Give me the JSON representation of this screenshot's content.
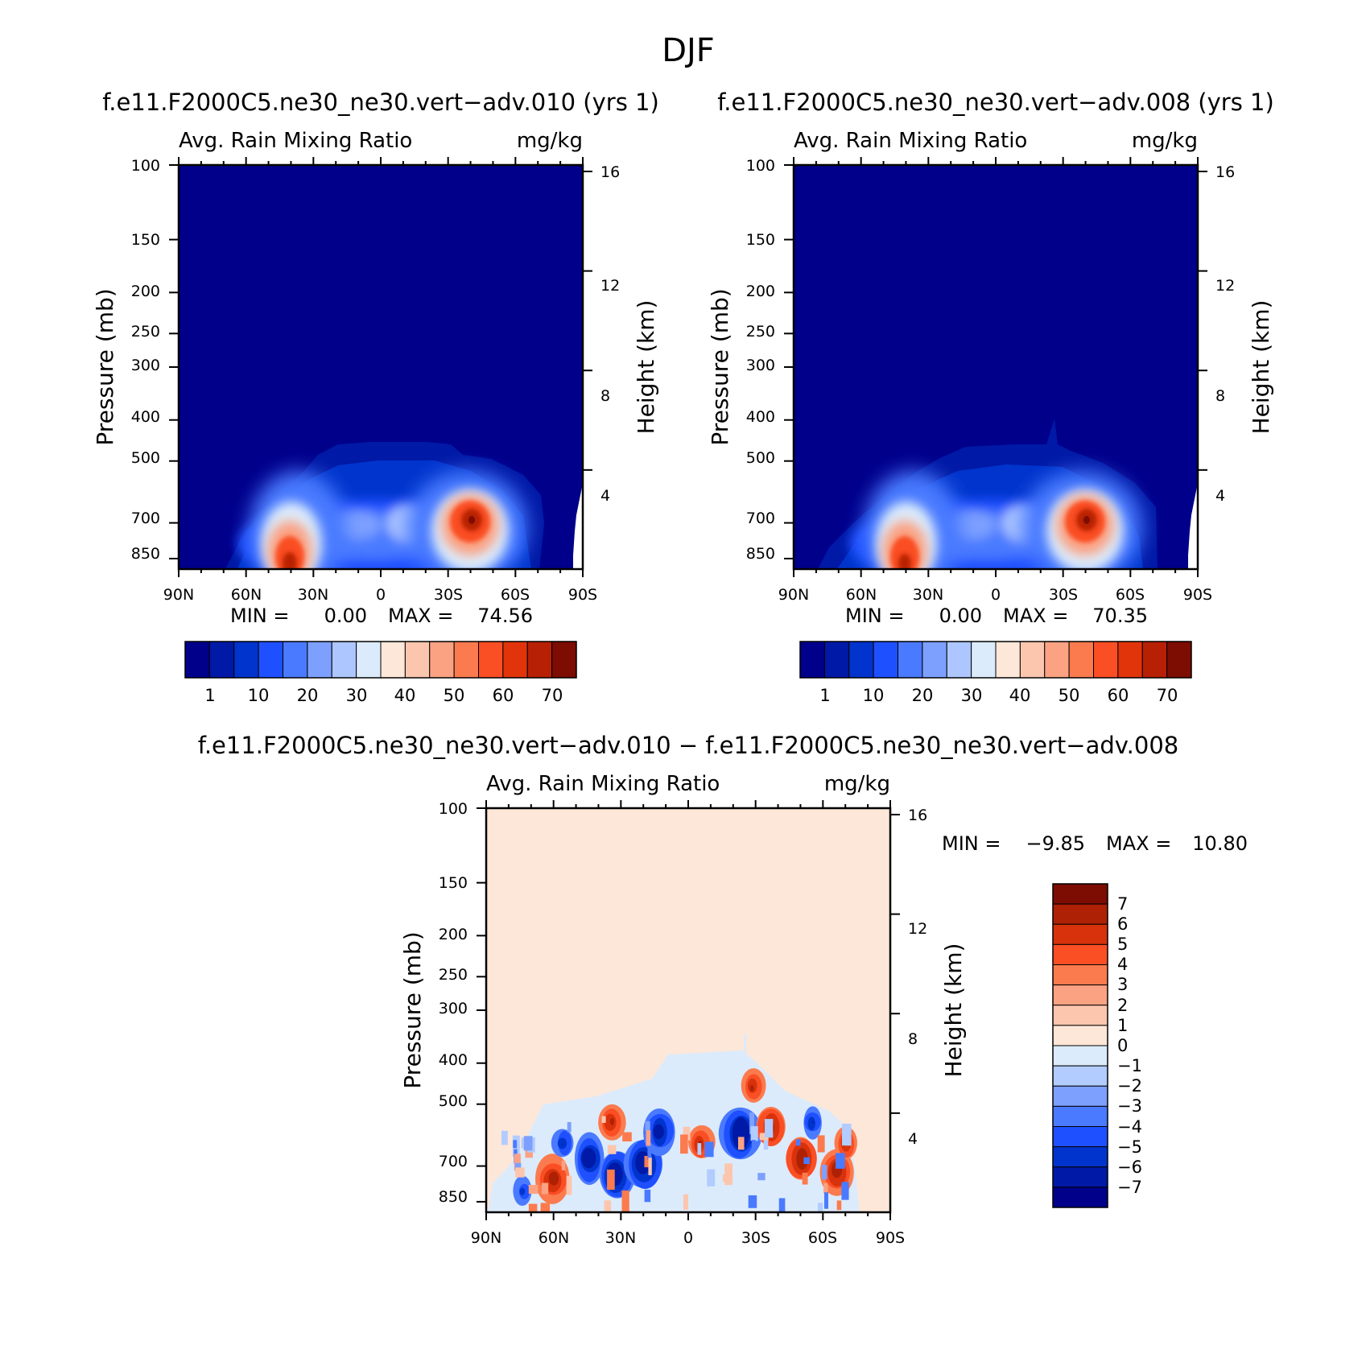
{
  "page_title": "DJF",
  "colors": {
    "field_scale": [
      "#00008b",
      "#0019a6",
      "#0034cc",
      "#1f50ff",
      "#4a7aff",
      "#7da0ff",
      "#adc6ff",
      "#dcebfb",
      "#fde7d8",
      "#fcc6ae",
      "#fba283",
      "#fb7b4e",
      "#fa4e24",
      "#e2340a",
      "#b82005",
      "#7d0c03"
    ],
    "diff_scale": [
      "#00008b",
      "#0019a6",
      "#0034cc",
      "#1f50ff",
      "#4a7aff",
      "#7da0ff",
      "#b2ccff",
      "#dcebfb",
      "#fde7d8",
      "#fcc6ae",
      "#fba283",
      "#fb7b4e",
      "#fa4e24",
      "#d7320c",
      "#ae2105",
      "#7d0c03"
    ]
  },
  "chart_data": [
    {
      "type": "heatmap",
      "title": "f.e11.F2000C5.ne30_ne30.vert−adv.010 (yrs 1)",
      "subtitle_left": "Avg. Rain Mixing Ratio",
      "subtitle_right": "mg/kg",
      "ylabel": "Pressure (mb)",
      "ylabel_right": "Height (km)",
      "x_ticks": [
        "90N",
        "60N",
        "30N",
        "0",
        "30S",
        "60S",
        "90S"
      ],
      "y_ticks": [
        "100",
        "150",
        "200",
        "250",
        "300",
        "400",
        "500",
        "700",
        "850"
      ],
      "y_right_ticks": [
        "16",
        "12",
        "8",
        "4"
      ],
      "xlim": [
        90,
        -90
      ],
      "ylim": [
        100,
        900
      ],
      "min_label": "MIN =",
      "min_value": "0.00",
      "max_label": "MAX =",
      "max_value": "74.56",
      "colorbar_labels": [
        "1",
        "10",
        "20",
        "30",
        "40",
        "50",
        "60",
        "70"
      ],
      "features": [
        {
          "name": "nh-maximum",
          "lat": 40,
          "p": 860,
          "value": 72
        },
        {
          "name": "sh-maximum",
          "lat": -40,
          "p": 700,
          "value": 74.56
        }
      ],
      "rain_top_mb": 480
    },
    {
      "type": "heatmap",
      "title": "f.e11.F2000C5.ne30_ne30.vert−adv.008 (yrs 1)",
      "subtitle_left": "Avg. Rain Mixing Ratio",
      "subtitle_right": "mg/kg",
      "ylabel": "Pressure (mb)",
      "ylabel_right": "Height (km)",
      "x_ticks": [
        "90N",
        "60N",
        "30N",
        "0",
        "30S",
        "60S",
        "90S"
      ],
      "y_ticks": [
        "100",
        "150",
        "200",
        "250",
        "300",
        "400",
        "500",
        "700",
        "850"
      ],
      "y_right_ticks": [
        "16",
        "12",
        "8",
        "4"
      ],
      "xlim": [
        90,
        -90
      ],
      "ylim": [
        100,
        900
      ],
      "min_label": "MIN =",
      "min_value": "0.00",
      "max_label": "MAX =",
      "max_value": "70.35",
      "colorbar_labels": [
        "1",
        "10",
        "20",
        "30",
        "40",
        "50",
        "60",
        "70"
      ],
      "features": [
        {
          "name": "nh-maximum",
          "lat": 40,
          "p": 860,
          "value": 68
        },
        {
          "name": "sh-maximum",
          "lat": -40,
          "p": 700,
          "value": 70.35
        }
      ],
      "rain_top_mb": 480
    },
    {
      "type": "heatmap",
      "title": "f.e11.F2000C5.ne30_ne30.vert−adv.010 − f.e11.F2000C5.ne30_ne30.vert−adv.008",
      "subtitle_left": "Avg. Rain Mixing Ratio",
      "subtitle_right": "mg/kg",
      "ylabel": "Pressure (mb)",
      "ylabel_right": "Height (km)",
      "x_ticks": [
        "90N",
        "60N",
        "30N",
        "0",
        "30S",
        "60S",
        "90S"
      ],
      "y_ticks": [
        "100",
        "150",
        "200",
        "250",
        "300",
        "400",
        "500",
        "700",
        "850"
      ],
      "y_right_ticks": [
        "16",
        "12",
        "8",
        "4"
      ],
      "xlim": [
        90,
        -90
      ],
      "ylim": [
        100,
        900
      ],
      "min_label": "MIN =",
      "min_value": "−9.85",
      "max_label": "MAX =",
      "max_value": "10.80",
      "colorbar_labels": [
        "7",
        "6",
        "5",
        "4",
        "3",
        "2",
        "1",
        "0",
        "−1",
        "−2",
        "−3",
        "−4",
        "−5",
        "−6",
        "−7"
      ],
      "background_value": 0
    }
  ]
}
